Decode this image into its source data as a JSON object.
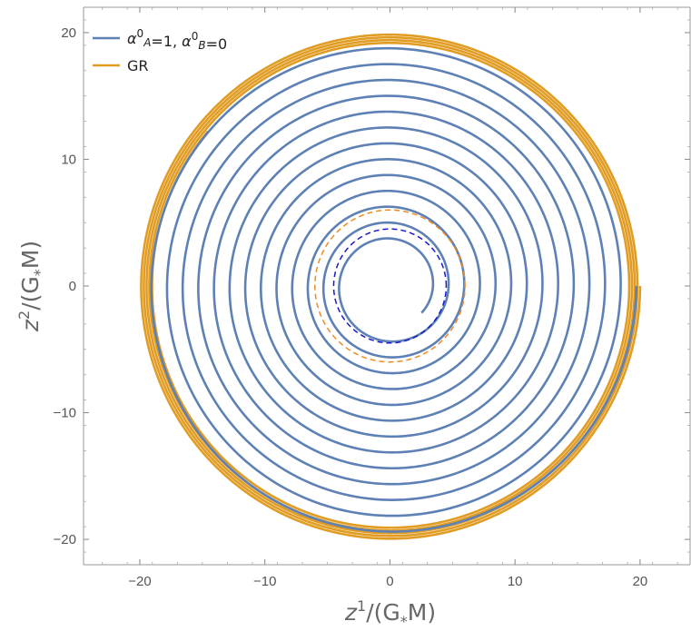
{
  "chart_data": {
    "type": "line",
    "x_axis": {
      "range": [
        -24.5,
        24
      ],
      "ticks": [
        -20,
        -10,
        0,
        10,
        20
      ],
      "tick_labels": [
        "−20",
        "−10",
        "0",
        "10",
        "20"
      ]
    },
    "y_axis": {
      "range": [
        -22,
        22
      ],
      "ticks": [
        -20,
        -10,
        0,
        10,
        20
      ],
      "tick_labels": [
        "−20",
        "−10",
        "0",
        "10",
        "20"
      ]
    },
    "xlabel": {
      "var": "z",
      "sup": "1",
      "rest": "/(G",
      "sub": "*",
      "tail": "M)"
    },
    "ylabel": {
      "var": "z",
      "sup": "2",
      "rest": "/(G",
      "sub": "*",
      "tail": "M)"
    },
    "legend": {
      "position": "top-left",
      "entries": [
        {
          "series": "alpha",
          "pieces": [
            {
              "t": "α",
              "style": "italic"
            },
            {
              "t": "0",
              "style": "sup"
            },
            {
              "t": "A",
              "style": "sub"
            },
            {
              "t": "=1, ",
              "style": "normal"
            },
            {
              "t": "α",
              "style": "italic"
            },
            {
              "t": "0",
              "style": "sup"
            },
            {
              "t": "B",
              "style": "sub"
            },
            {
              "t": "=0",
              "style": "normal"
            }
          ]
        },
        {
          "series": "gr",
          "pieces": [
            {
              "t": "GR",
              "style": "normal"
            }
          ]
        }
      ]
    },
    "series": [
      {
        "key": "gr",
        "color": "#e19c24",
        "style": "solid",
        "kind": "spiral",
        "r_start": 20.0,
        "r_end": 19.0,
        "theta_start_deg": 0,
        "theta_end_deg": -1660
      },
      {
        "key": "alpha",
        "color": "#5e81b5",
        "style": "solid",
        "kind": "spiral",
        "r_start": 19.7,
        "r_end": 3.3,
        "theta_start_deg": 0,
        "theta_end_deg": -4720
      },
      {
        "key": "circle_outer",
        "color": "#f08a24",
        "style": "dashed",
        "kind": "circle",
        "r": 6.0
      },
      {
        "key": "circle_inner",
        "color": "#1a1acc",
        "style": "dashed",
        "kind": "circle",
        "r": 4.5
      }
    ],
    "grid": false
  }
}
